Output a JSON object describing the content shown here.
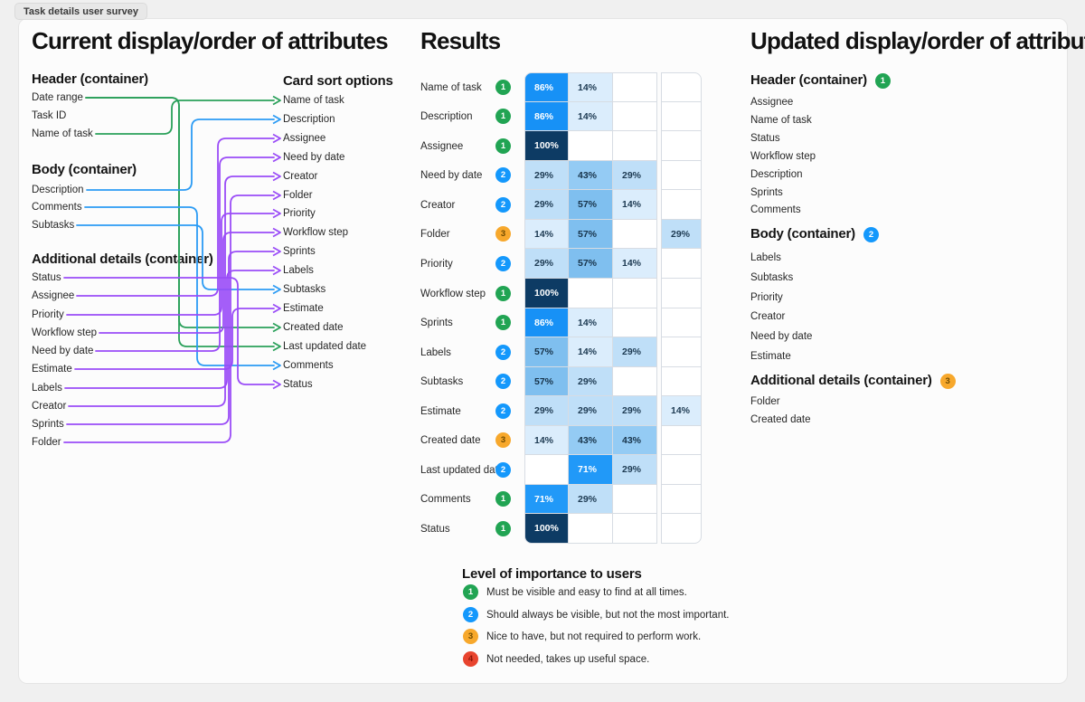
{
  "page": {
    "tab_label": "Task details user survey"
  },
  "left_panel": {
    "title": "Current display/order of attributes",
    "groups": [
      {
        "heading": "Header (container)",
        "items": [
          "Date range",
          "Task ID",
          "Name of task"
        ]
      },
      {
        "heading": "Body (container)",
        "items": [
          "Description",
          "Comments",
          "Subtasks"
        ]
      },
      {
        "heading": "Additional details (container)",
        "items": [
          "Status",
          "Assignee",
          "Priority",
          "Workflow step",
          "Need by date",
          "Estimate",
          "Labels",
          "Creator",
          "Sprints",
          "Folder"
        ]
      }
    ],
    "card_sort": {
      "heading": "Card sort options",
      "options": [
        {
          "label": "Name of task",
          "color": "green"
        },
        {
          "label": "Description",
          "color": "blue"
        },
        {
          "label": "Assignee",
          "color": "purple"
        },
        {
          "label": "Need by date",
          "color": "purple"
        },
        {
          "label": "Creator",
          "color": "purple"
        },
        {
          "label": "Folder",
          "color": "purple"
        },
        {
          "label": "Priority",
          "color": "purple"
        },
        {
          "label": "Workflow step",
          "color": "purple"
        },
        {
          "label": "Sprints",
          "color": "purple"
        },
        {
          "label": "Labels",
          "color": "purple"
        },
        {
          "label": "Subtasks",
          "color": "blue"
        },
        {
          "label": "Estimate",
          "color": "purple"
        },
        {
          "label": "Created date",
          "color": "green"
        },
        {
          "label": "Last updated date",
          "color": "green"
        },
        {
          "label": "Comments",
          "color": "blue"
        },
        {
          "label": "Status",
          "color": "purple"
        }
      ]
    },
    "connectors": [
      {
        "from": [
          0,
          0
        ],
        "to": 12,
        "color": "green",
        "trunk": 198
      },
      {
        "from": [
          0,
          0
        ],
        "to": 13,
        "color": "green",
        "trunk": 198
      },
      {
        "from": [
          0,
          2
        ],
        "to": 0,
        "color": "green",
        "trunk": 190
      },
      {
        "from": [
          1,
          0
        ],
        "to": 1,
        "color": "blue",
        "trunk": 212
      },
      {
        "from": [
          1,
          1
        ],
        "to": 14,
        "color": "blue",
        "trunk": 218
      },
      {
        "from": [
          1,
          2
        ],
        "to": 10,
        "color": "blue",
        "trunk": 224
      },
      {
        "from": [
          2,
          0
        ],
        "to": 15,
        "color": "purple",
        "trunk": 263
      },
      {
        "from": [
          2,
          1
        ],
        "to": 2,
        "color": "purple",
        "trunk": 241
      },
      {
        "from": [
          2,
          2
        ],
        "to": 6,
        "color": "purple",
        "trunk": 245
      },
      {
        "from": [
          2,
          3
        ],
        "to": 7,
        "color": "purple",
        "trunk": 247
      },
      {
        "from": [
          2,
          4
        ],
        "to": 3,
        "color": "purple",
        "trunk": 243
      },
      {
        "from": [
          2,
          5
        ],
        "to": 11,
        "color": "purple",
        "trunk": 257
      },
      {
        "from": [
          2,
          6
        ],
        "to": 9,
        "color": "purple",
        "trunk": 251
      },
      {
        "from": [
          2,
          7
        ],
        "to": 4,
        "color": "purple",
        "trunk": 249
      },
      {
        "from": [
          2,
          8
        ],
        "to": 8,
        "color": "purple",
        "trunk": 253
      },
      {
        "from": [
          2,
          9
        ],
        "to": 5,
        "color": "purple",
        "trunk": 255
      }
    ]
  },
  "results": {
    "title": "Results",
    "rows": [
      {
        "label": "Name of task",
        "level": 1,
        "cells": [
          "86%",
          "14%",
          "",
          ""
        ]
      },
      {
        "label": "Description",
        "level": 1,
        "cells": [
          "86%",
          "14%",
          "",
          ""
        ]
      },
      {
        "label": "Assignee",
        "level": 1,
        "cells": [
          "100%",
          "",
          "",
          ""
        ]
      },
      {
        "label": "Need by date",
        "level": 2,
        "cells": [
          "29%",
          "43%",
          "29%",
          ""
        ]
      },
      {
        "label": "Creator",
        "level": 2,
        "cells": [
          "29%",
          "57%",
          "14%",
          ""
        ]
      },
      {
        "label": "Folder",
        "level": 3,
        "cells": [
          "14%",
          "57%",
          "",
          "29%"
        ]
      },
      {
        "label": "Priority",
        "level": 2,
        "cells": [
          "29%",
          "57%",
          "14%",
          ""
        ]
      },
      {
        "label": "Workflow step",
        "level": 1,
        "cells": [
          "100%",
          "",
          "",
          ""
        ]
      },
      {
        "label": "Sprints",
        "level": 1,
        "cells": [
          "86%",
          "14%",
          "",
          ""
        ]
      },
      {
        "label": "Labels",
        "level": 2,
        "cells": [
          "57%",
          "14%",
          "29%",
          ""
        ]
      },
      {
        "label": "Subtasks",
        "level": 2,
        "cells": [
          "57%",
          "29%",
          "",
          ""
        ]
      },
      {
        "label": "Estimate",
        "level": 2,
        "cells": [
          "29%",
          "29%",
          "29%",
          "14%"
        ]
      },
      {
        "label": "Created date",
        "level": 3,
        "cells": [
          "14%",
          "43%",
          "43%",
          ""
        ]
      },
      {
        "label": "Last updated date",
        "level": 2,
        "cells": [
          "",
          "71%",
          "29%",
          ""
        ]
      },
      {
        "label": "Comments",
        "level": 1,
        "cells": [
          "71%",
          "29%",
          "",
          ""
        ]
      },
      {
        "label": "Status",
        "level": 1,
        "cells": [
          "100%",
          "",
          "",
          ""
        ]
      }
    ]
  },
  "legend": {
    "title": "Level of importance to users",
    "items": [
      {
        "level": 1,
        "text": "Must be visible and easy to find at all times."
      },
      {
        "level": 2,
        "text": "Should always be visible, but not the most important."
      },
      {
        "level": 3,
        "text": "Nice to have, but not required to perform work."
      },
      {
        "level": 4,
        "text": "Not needed, takes up useful space."
      }
    ]
  },
  "right_panel": {
    "title": "Updated display/order of attributes",
    "sections": [
      {
        "heading": "Header (container)",
        "level": 1,
        "items": [
          "Assignee",
          "Name of task",
          "Status",
          "Workflow step",
          "Description",
          "Sprints",
          "Comments"
        ]
      },
      {
        "heading": "Body (container)",
        "level": 2,
        "items": [
          "Labels",
          "Subtasks",
          "Priority",
          "Creator",
          "Need by date",
          "Estimate"
        ]
      },
      {
        "heading": "Additional details (container)",
        "level": 3,
        "items": [
          "Folder",
          "Created date"
        ]
      }
    ]
  },
  "colors": {
    "canvas": "#f0f0f0",
    "card": "#fcfcfc",
    "card_border": "#e5e5e5",
    "table_border": "#d7dce3",
    "chip_bg": "#e8e8e8",
    "connector": {
      "green": "#2aa05a",
      "blue": "#2b9bf4",
      "purple": "#9a4cf7"
    },
    "levels": {
      "1": {
        "bg": "#21a453",
        "fg": "#ffffff"
      },
      "2": {
        "bg": "#1498fc",
        "fg": "#ffffff"
      },
      "3": {
        "bg": "#f7a82c",
        "fg": "#6e4a00"
      },
      "4": {
        "bg": "#e8442e",
        "fg": "#8c1507"
      }
    },
    "cells": {
      "14%": {
        "bg": "#dbedfc",
        "fg": "#1d3a52"
      },
      "29%": {
        "bg": "#bfdff8",
        "fg": "#1d3a52"
      },
      "43%": {
        "bg": "#94cbf4",
        "fg": "#17334a"
      },
      "57%": {
        "bg": "#7fbfef",
        "fg": "#17334a"
      },
      "71%": {
        "bg": "#2199f8",
        "fg": "#ffffff"
      },
      "86%": {
        "bg": "#1791f6",
        "fg": "#ffffff"
      },
      "100%": {
        "bg": "#0d3b64",
        "fg": "#ffffff"
      },
      "": {
        "bg": "#ffffff",
        "fg": "#000000"
      }
    }
  }
}
